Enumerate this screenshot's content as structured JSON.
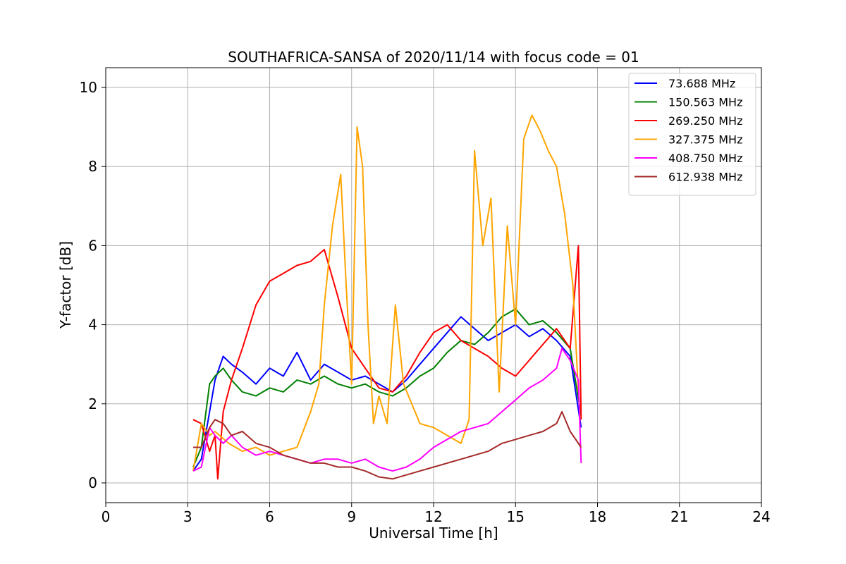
{
  "chart_data": {
    "type": "line",
    "title": "SOUTHAFRICA-SANSA of 2020/11/14 with focus code = 01",
    "xlabel": "Universal Time [h]",
    "ylabel": "Y-factor [dB]",
    "xlim": [
      0,
      24
    ],
    "ylim": [
      -0.5,
      10.5
    ],
    "xticks": [
      0,
      3,
      6,
      9,
      12,
      15,
      18,
      21,
      24
    ],
    "yticks": [
      0,
      2,
      4,
      6,
      8,
      10
    ],
    "grid": true,
    "legend_position": "top-right",
    "series": [
      {
        "name": " 73.688 MHz",
        "color": "#0000ff",
        "x": [
          3.2,
          3.5,
          3.8,
          4.0,
          4.3,
          4.6,
          5.0,
          5.5,
          6.0,
          6.5,
          7.0,
          7.5,
          8.0,
          8.5,
          9.0,
          9.5,
          10.0,
          10.5,
          11.0,
          11.5,
          12.0,
          12.5,
          13.0,
          13.5,
          14.0,
          14.5,
          15.0,
          15.5,
          16.0,
          16.5,
          17.0,
          17.4
        ],
        "y": [
          0.3,
          0.6,
          1.8,
          2.6,
          3.2,
          3.0,
          2.8,
          2.5,
          2.9,
          2.7,
          3.3,
          2.6,
          3.0,
          2.8,
          2.6,
          2.7,
          2.5,
          2.3,
          2.6,
          3.0,
          3.4,
          3.8,
          4.2,
          3.9,
          3.6,
          3.8,
          4.0,
          3.7,
          3.9,
          3.6,
          3.2,
          1.4
        ]
      },
      {
        "name": "150.563 MHz",
        "color": "#008000",
        "x": [
          3.2,
          3.5,
          3.8,
          4.0,
          4.3,
          4.6,
          5.0,
          5.5,
          6.0,
          6.5,
          7.0,
          7.5,
          8.0,
          8.5,
          9.0,
          9.5,
          10.0,
          10.5,
          11.0,
          11.5,
          12.0,
          12.5,
          13.0,
          13.5,
          14.0,
          14.5,
          15.0,
          15.5,
          16.0,
          16.5,
          17.0,
          17.4
        ],
        "y": [
          0.4,
          0.9,
          2.5,
          2.7,
          2.9,
          2.6,
          2.3,
          2.2,
          2.4,
          2.3,
          2.6,
          2.5,
          2.7,
          2.5,
          2.4,
          2.5,
          2.3,
          2.2,
          2.4,
          2.7,
          2.9,
          3.3,
          3.6,
          3.5,
          3.8,
          4.2,
          4.4,
          4.0,
          4.1,
          3.8,
          3.4,
          1.7
        ]
      },
      {
        "name": "269.250 MHz",
        "color": "#ff0000",
        "x": [
          3.2,
          3.5,
          3.8,
          4.0,
          4.1,
          4.3,
          4.6,
          5.0,
          5.5,
          6.0,
          6.5,
          7.0,
          7.5,
          8.0,
          8.5,
          9.0,
          9.5,
          10.0,
          10.5,
          11.0,
          11.5,
          12.0,
          12.5,
          13.0,
          13.5,
          14.0,
          14.5,
          15.0,
          15.5,
          16.0,
          16.5,
          17.0,
          17.3,
          17.4
        ],
        "y": [
          1.6,
          1.5,
          0.8,
          1.2,
          0.1,
          1.8,
          2.6,
          3.4,
          4.5,
          5.1,
          5.3,
          5.5,
          5.6,
          5.9,
          4.7,
          3.4,
          2.9,
          2.4,
          2.3,
          2.7,
          3.3,
          3.8,
          4.0,
          3.6,
          3.4,
          3.2,
          2.9,
          2.7,
          3.1,
          3.5,
          3.9,
          3.4,
          6.0,
          1.6
        ]
      },
      {
        "name": "327.375 MHz",
        "color": "#ffa500",
        "x": [
          3.2,
          3.5,
          3.8,
          4.0,
          4.5,
          5.0,
          5.5,
          6.0,
          6.5,
          7.0,
          7.5,
          7.8,
          8.0,
          8.3,
          8.6,
          8.8,
          9.0,
          9.2,
          9.4,
          9.6,
          9.8,
          10.0,
          10.3,
          10.6,
          10.9,
          11.2,
          11.5,
          12.0,
          12.5,
          13.0,
          13.3,
          13.5,
          13.8,
          14.1,
          14.4,
          14.7,
          15.0,
          15.3,
          15.6,
          15.9,
          16.2,
          16.5,
          16.8,
          17.1,
          17.3
        ],
        "y": [
          0.3,
          1.5,
          1.2,
          1.3,
          1.0,
          0.8,
          0.9,
          0.7,
          0.8,
          0.9,
          1.8,
          2.5,
          4.5,
          6.5,
          7.8,
          5.0,
          2.5,
          9.0,
          8.0,
          4.0,
          1.5,
          2.2,
          1.5,
          4.5,
          2.5,
          2.0,
          1.5,
          1.4,
          1.2,
          1.0,
          1.6,
          8.4,
          6.0,
          7.2,
          2.3,
          6.5,
          4.0,
          8.7,
          9.3,
          8.9,
          8.4,
          8.0,
          6.8,
          5.0,
          2.3
        ]
      },
      {
        "name": "408.750 MHz",
        "color": "#ff00ff",
        "x": [
          3.2,
          3.5,
          3.8,
          4.0,
          4.3,
          4.6,
          5.0,
          5.5,
          6.0,
          6.5,
          7.0,
          7.5,
          8.0,
          8.5,
          9.0,
          9.5,
          10.0,
          10.5,
          11.0,
          11.5,
          12.0,
          12.5,
          13.0,
          13.5,
          14.0,
          14.5,
          15.0,
          15.5,
          16.0,
          16.5,
          16.7,
          17.0,
          17.3,
          17.4
        ],
        "y": [
          0.3,
          0.4,
          1.4,
          1.2,
          1.0,
          1.2,
          0.9,
          0.7,
          0.8,
          0.7,
          0.6,
          0.5,
          0.6,
          0.6,
          0.5,
          0.6,
          0.4,
          0.3,
          0.4,
          0.6,
          0.9,
          1.1,
          1.3,
          1.4,
          1.5,
          1.8,
          2.1,
          2.4,
          2.6,
          2.9,
          3.4,
          3.1,
          2.6,
          0.5
        ]
      },
      {
        "name": "612.938 MHz",
        "color": "#a52a2a",
        "x": [
          3.2,
          3.5,
          3.8,
          4.0,
          4.3,
          4.6,
          5.0,
          5.5,
          6.0,
          6.5,
          7.0,
          7.5,
          8.0,
          8.5,
          9.0,
          9.5,
          10.0,
          10.5,
          11.0,
          11.5,
          12.0,
          12.5,
          13.0,
          13.5,
          14.0,
          14.5,
          15.0,
          15.5,
          16.0,
          16.5,
          16.7,
          17.0,
          17.4
        ],
        "y": [
          0.9,
          0.9,
          1.4,
          1.6,
          1.5,
          1.2,
          1.3,
          1.0,
          0.9,
          0.7,
          0.6,
          0.5,
          0.5,
          0.4,
          0.4,
          0.3,
          0.15,
          0.1,
          0.2,
          0.3,
          0.4,
          0.5,
          0.6,
          0.7,
          0.8,
          1.0,
          1.1,
          1.2,
          1.3,
          1.5,
          1.8,
          1.3,
          0.9
        ]
      }
    ]
  }
}
